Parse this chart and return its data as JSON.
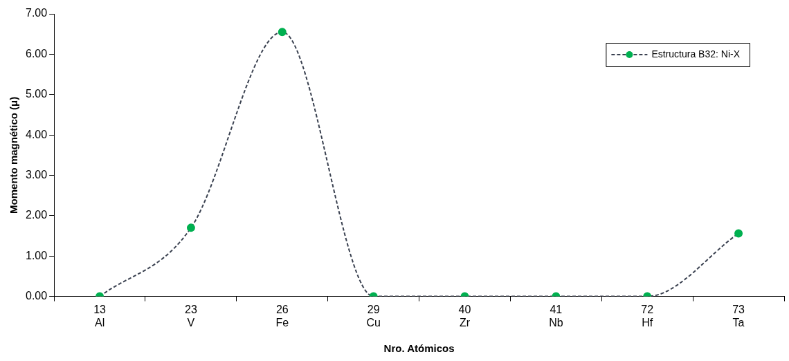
{
  "chart_data": {
    "type": "line",
    "xlabel": "Nro. Atómicos",
    "ylabel": "Momento magnético (μ)",
    "categories": [
      "13\nAl",
      "23\nV",
      "26\nFe",
      "29\nCu",
      "40\nZr",
      "41\nNb",
      "72\nHf",
      "73\nTa"
    ],
    "series": [
      {
        "name": "Estructura B32: Ni-X",
        "color": "#00b050",
        "values": [
          0,
          1.7,
          6.55,
          0,
          0,
          0,
          0,
          1.56
        ]
      }
    ],
    "ylim": [
      0,
      7
    ],
    "yticks": [
      {
        "value": 0,
        "label": "0.00"
      },
      {
        "value": 1,
        "label": "1.00"
      },
      {
        "value": 2,
        "label": "2.00"
      },
      {
        "value": 3,
        "label": "3.00"
      },
      {
        "value": 4,
        "label": "4.00"
      },
      {
        "value": 5,
        "label": "5.00"
      },
      {
        "value": 6,
        "label": "6.00"
      },
      {
        "value": 7,
        "label": "7.00"
      }
    ],
    "grid": false,
    "legend": "top right",
    "marker": "circle",
    "line_style": "dashed"
  }
}
